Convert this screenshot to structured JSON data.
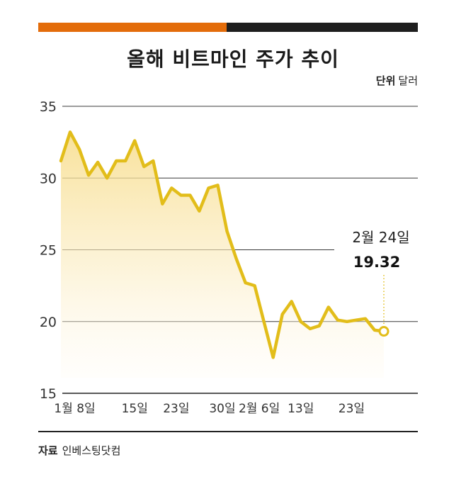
{
  "header": {
    "title": "올해 비트마인 주가 추이",
    "unit_label": "단위",
    "unit_value": "달러",
    "accent_color": "#e36c0a",
    "dark_color": "#1e1e1e"
  },
  "footer": {
    "source_label": "자료",
    "source_value": "인베스팅닷컴"
  },
  "chart_data": {
    "type": "area",
    "title": "올해 비트마인 주가 추이",
    "ylabel": "달러",
    "ylim": [
      15,
      35
    ],
    "yticks": [
      "35",
      "30",
      "25",
      "20",
      "15"
    ],
    "ytick_values": [
      35,
      30,
      25,
      20,
      15
    ],
    "line_color": "#e2bd1a",
    "x_ticks": [
      {
        "index": 1.5,
        "label": "1월 8일"
      },
      {
        "index": 8,
        "label": "15일"
      },
      {
        "index": 12.5,
        "label": "23일"
      },
      {
        "index": 17.5,
        "label": "30일"
      },
      {
        "index": 21.5,
        "label": "2월 6일"
      },
      {
        "index": 26,
        "label": "13일"
      },
      {
        "index": 31.5,
        "label": "23일"
      }
    ],
    "values": [
      31.2,
      33.2,
      32.0,
      30.2,
      31.1,
      30.0,
      31.2,
      31.2,
      32.6,
      30.8,
      31.2,
      28.2,
      29.3,
      28.8,
      28.8,
      27.7,
      29.3,
      29.5,
      26.3,
      24.4,
      22.7,
      22.5,
      20.0,
      17.5,
      20.5,
      21.4,
      20.0,
      19.5,
      19.7,
      21.0,
      20.1,
      20.0,
      20.1,
      20.2,
      19.4,
      19.32
    ],
    "annotation": {
      "date": "2월 24일",
      "value": "19.32"
    }
  }
}
